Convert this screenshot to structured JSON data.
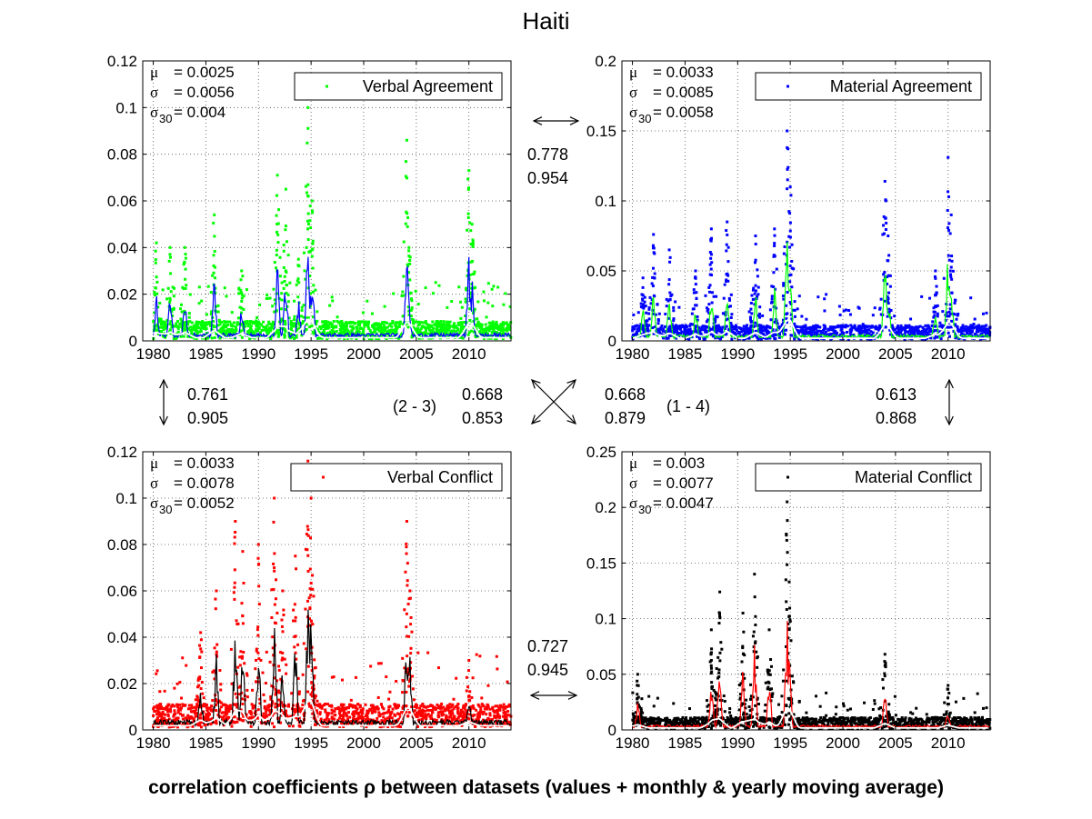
{
  "figure": {
    "title": "Haiti",
    "caption": "correlation coefficients ρ between datasets (values + monthly & yearly moving average)"
  },
  "correlations": {
    "top": [
      "0.778",
      "0.954"
    ],
    "left": [
      "0.761",
      "0.905"
    ],
    "right": [
      "0.613",
      "0.868"
    ],
    "bottom": [
      "0.727",
      "0.945"
    ],
    "diag_23": [
      "0.668",
      "0.853"
    ],
    "diag_14": [
      "0.668",
      "0.879"
    ],
    "diag_23_label": "(2 - 3)",
    "diag_14_label": "(1 - 4)"
  },
  "colors": {
    "verbal_agreement": "#00ff00",
    "material_agreement": "#0000ff",
    "verbal_conflict": "#ff0000",
    "material_conflict": "#000000",
    "yearly_average": "#ffffff"
  },
  "chart_data": [
    {
      "type": "scatter",
      "title": "",
      "legend": "Verbal Agreement",
      "legend_position": "top-right",
      "grid": true,
      "xlim": [
        1979,
        2014
      ],
      "ylim": [
        0,
        0.12
      ],
      "xticks": [
        "1980",
        "1985",
        "1990",
        "1995",
        "2000",
        "2005",
        "2010"
      ],
      "yticks": [
        "0",
        "0.02",
        "0.04",
        "0.06",
        "0.08",
        "0.1",
        "0.12"
      ],
      "stats": {
        "mu": "= 0.0025",
        "sigma": "= 0.0056",
        "sigma30": "= 0.004"
      },
      "color": "#00ff00",
      "monthly_color": "#0000ff",
      "yearly_color": "#ffffff",
      "baseline": 0.003,
      "peaks": [
        [
          1980.3,
          0.042
        ],
        [
          1981.6,
          0.04
        ],
        [
          1983.0,
          0.04
        ],
        [
          1985.8,
          0.054
        ],
        [
          1988.4,
          0.03
        ],
        [
          1991.8,
          0.071
        ],
        [
          1992.6,
          0.065
        ],
        [
          1993.8,
          0.035
        ],
        [
          1994.7,
          0.1
        ],
        [
          1995.1,
          0.06
        ],
        [
          2004.1,
          0.086
        ],
        [
          2004.3,
          0.04
        ],
        [
          2010.0,
          0.073
        ],
        [
          2010.3,
          0.05
        ]
      ]
    },
    {
      "type": "scatter",
      "title": "",
      "legend": "Material Agreement",
      "legend_position": "top-right",
      "grid": true,
      "xlim": [
        1979,
        2014
      ],
      "ylim": [
        0,
        0.2
      ],
      "xticks": [
        "1980",
        "1985",
        "1990",
        "1995",
        "2000",
        "2005",
        "2010"
      ],
      "yticks": [
        "0",
        "0.05",
        "0.1",
        "0.15",
        "0.2"
      ],
      "stats": {
        "mu": "= 0.0033",
        "sigma": "= 0.0085",
        "sigma30": "= 0.0058"
      },
      "color": "#0000ff",
      "monthly_color": "#00ff00",
      "yearly_color": "#ffffff",
      "baseline": 0.004,
      "peaks": [
        [
          1981.0,
          0.045
        ],
        [
          1982.0,
          0.076
        ],
        [
          1983.5,
          0.065
        ],
        [
          1986.0,
          0.05
        ],
        [
          1987.5,
          0.08
        ],
        [
          1989.0,
          0.085
        ],
        [
          1991.7,
          0.075
        ],
        [
          1993.5,
          0.08
        ],
        [
          1994.7,
          0.15
        ],
        [
          1995.0,
          0.11
        ],
        [
          2004.0,
          0.114
        ],
        [
          2004.3,
          0.075
        ],
        [
          2008.8,
          0.05
        ],
        [
          2010.0,
          0.131
        ],
        [
          2010.3,
          0.09
        ]
      ]
    },
    {
      "type": "scatter",
      "title": "",
      "legend": "Verbal Conflict",
      "legend_position": "top-right",
      "grid": true,
      "xlim": [
        1979,
        2014
      ],
      "ylim": [
        0,
        0.12
      ],
      "xticks": [
        "1980",
        "1985",
        "1990",
        "1995",
        "2000",
        "2005",
        "2010"
      ],
      "yticks": [
        "0",
        "0.02",
        "0.04",
        "0.06",
        "0.08",
        "0.1",
        "0.12"
      ],
      "stats": {
        "mu": "= 0.0033",
        "sigma": "= 0.0078",
        "sigma30": "= 0.0052"
      },
      "color": "#ff0000",
      "monthly_color": "#000000",
      "yearly_color": "#ffffff",
      "baseline": 0.004,
      "peaks": [
        [
          1984.5,
          0.042
        ],
        [
          1986.0,
          0.06
        ],
        [
          1987.8,
          0.09
        ],
        [
          1988.5,
          0.077
        ],
        [
          1990.0,
          0.08
        ],
        [
          1991.5,
          0.1
        ],
        [
          1992.3,
          0.06
        ],
        [
          1993.5,
          0.075
        ],
        [
          1994.7,
          0.116
        ],
        [
          1995.0,
          0.1
        ],
        [
          2004.1,
          0.09
        ],
        [
          2004.4,
          0.06
        ],
        [
          2010.0,
          0.03
        ]
      ]
    },
    {
      "type": "scatter",
      "title": "",
      "legend": "Material Conflict",
      "legend_position": "top-right",
      "grid": true,
      "xlim": [
        1979,
        2014
      ],
      "ylim": [
        0,
        0.25
      ],
      "xticks": [
        "1980",
        "1985",
        "1990",
        "1995",
        "2000",
        "2005",
        "2010"
      ],
      "yticks": [
        "0",
        "0.05",
        "0.1",
        "0.15",
        "0.2",
        "0.25"
      ],
      "stats": {
        "mu": "= 0.003",
        "sigma": "= 0.0077",
        "sigma30": "= 0.0047"
      },
      "color": "#000000",
      "monthly_color": "#ff0000",
      "yearly_color": "#ffffff",
      "baseline": 0.004,
      "peaks": [
        [
          1980.5,
          0.05
        ],
        [
          1987.5,
          0.09
        ],
        [
          1988.3,
          0.124
        ],
        [
          1990.5,
          0.105
        ],
        [
          1991.6,
          0.14
        ],
        [
          1993.0,
          0.09
        ],
        [
          1994.7,
          0.205
        ],
        [
          1994.9,
          0.133
        ],
        [
          2004.0,
          0.068
        ],
        [
          2010.0,
          0.04
        ]
      ]
    }
  ]
}
